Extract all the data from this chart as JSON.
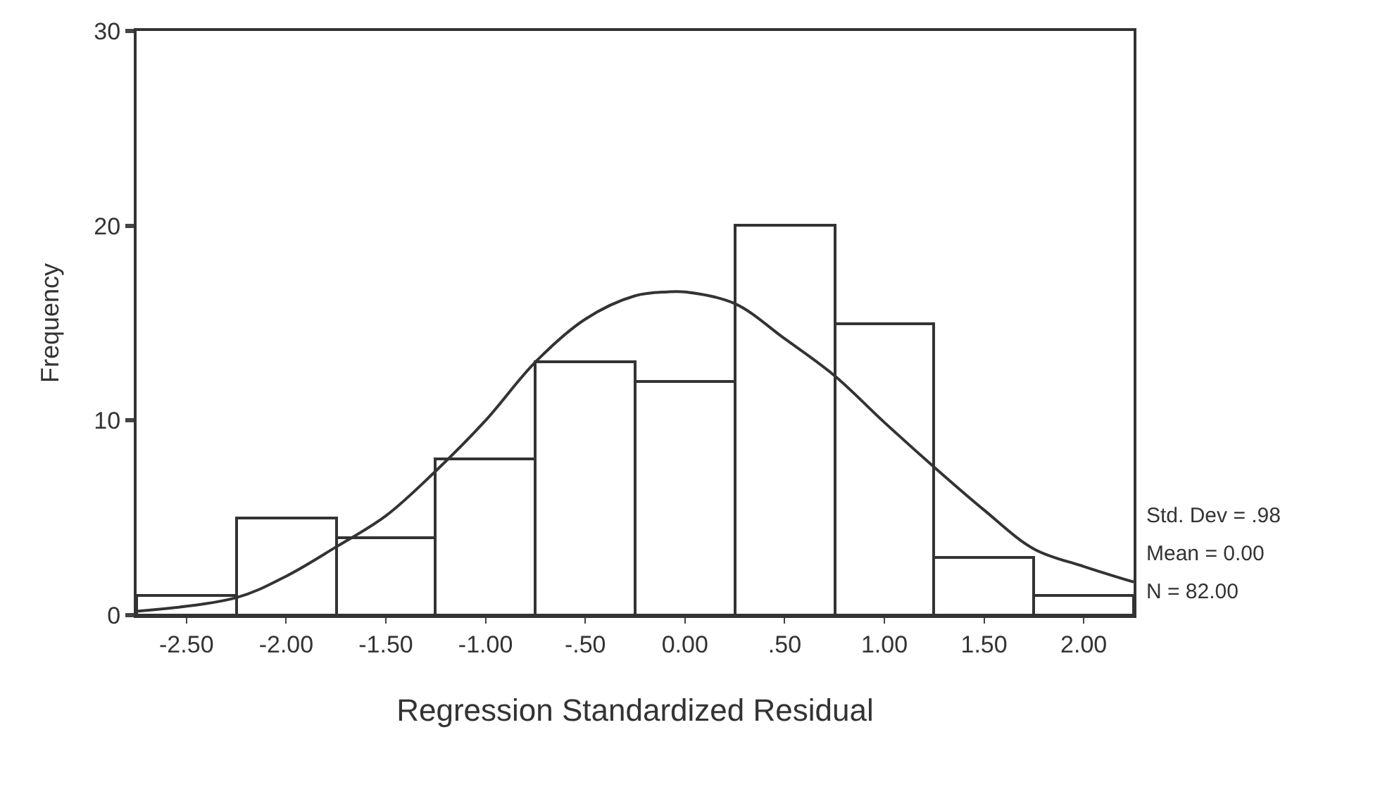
{
  "chart_data": {
    "type": "histogram",
    "xlabel": "Regression Standardized Residual",
    "ylabel": "Frequency",
    "bins": [
      -2.75,
      -2.25,
      -1.75,
      -1.25,
      -0.75,
      -0.25,
      0.25,
      0.75,
      1.25,
      1.75,
      2.25
    ],
    "values": [
      1,
      5,
      4,
      8,
      13,
      12,
      20,
      15,
      3,
      1
    ],
    "color": "#ffffff",
    "series": [
      {
        "type": "line",
        "color": "#333333",
        "x": [
          -2.75,
          -2.25,
          -2.0,
          -1.75,
          -1.5,
          -1.25,
          -1.0,
          -0.75,
          -0.5,
          -0.25,
          -0.09,
          0.0,
          0.25,
          0.5,
          0.75,
          1.0,
          1.25,
          1.5,
          1.75,
          2.0,
          2.25
        ],
        "values": [
          0.2,
          0.9,
          2.0,
          3.5,
          5.1,
          7.4,
          10.0,
          13.0,
          15.2,
          16.4,
          16.6,
          16.6,
          16.0,
          14.2,
          12.3,
          9.9,
          7.6,
          5.4,
          3.4,
          2.5,
          1.7
        ]
      }
    ],
    "xlim": [
      -2.75,
      2.25
    ],
    "xticks": [
      {
        "value": -2.5,
        "label": "-2.50"
      },
      {
        "value": -2.0,
        "label": "-2.00"
      },
      {
        "value": -1.5,
        "label": "-1.50"
      },
      {
        "value": -1.0,
        "label": "-1.00"
      },
      {
        "value": -0.5,
        "label": "-.50"
      },
      {
        "value": 0.0,
        "label": "0.00"
      },
      {
        "value": 0.5,
        "label": ".50"
      },
      {
        "value": 1.0,
        "label": "1.00"
      },
      {
        "value": 1.5,
        "label": "1.50"
      },
      {
        "value": 2.0,
        "label": "2.00"
      }
    ],
    "ylim": [
      0,
      30
    ],
    "yticks": [
      0,
      10,
      20,
      30
    ],
    "annotations": [
      "Std. Dev = .98",
      "Mean = 0.00",
      "N = 82.00"
    ],
    "marker": "none",
    "line_style": "solid"
  }
}
